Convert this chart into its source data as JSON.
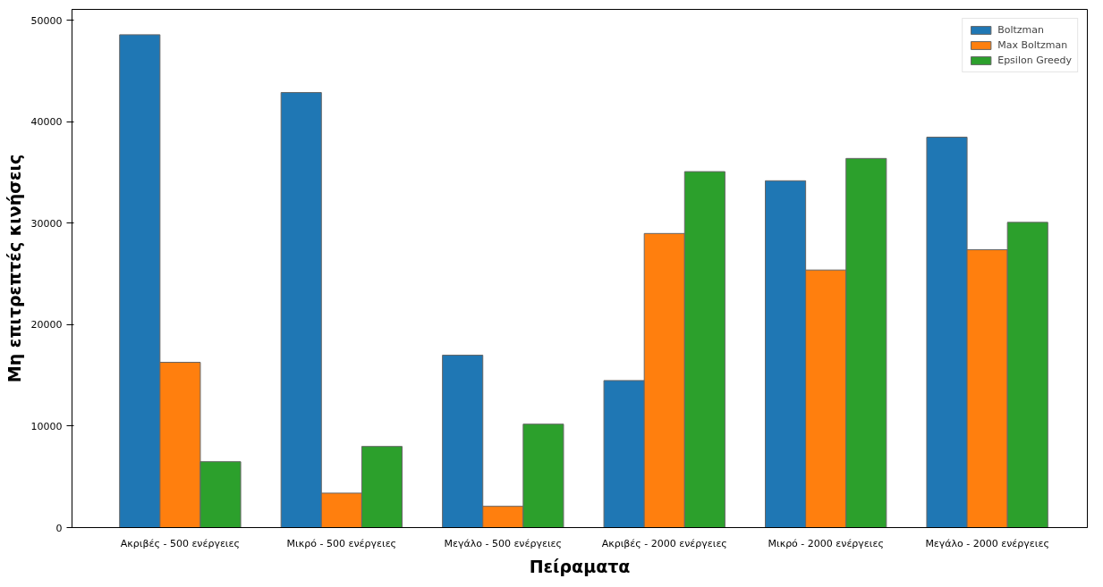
{
  "chart_data": {
    "type": "bar",
    "xlabel": "Πείραματα",
    "ylabel": "Μη επιτρεπτές κινήσεις",
    "categories": [
      "Ακριβές - 500 ενέργειες",
      "Μικρό - 500 ενέργειες",
      "Μεγάλο - 500 ενέργειες",
      "Ακριβές - 2000 ενέργειες",
      "Μικρό - 2000 ενέργειες",
      "Μεγάλο - 2000 ενέργειες"
    ],
    "series": [
      {
        "name": "Boltzman",
        "color": "#1f77b4",
        "values": [
          48600,
          42900,
          17000,
          14500,
          34200,
          38500
        ]
      },
      {
        "name": "Max Boltzman",
        "color": "#ff7f0e",
        "values": [
          16300,
          3400,
          2100,
          29000,
          25400,
          27400
        ]
      },
      {
        "name": "Epsilon Greedy",
        "color": "#2ca02c",
        "values": [
          6500,
          8000,
          10200,
          35100,
          36400,
          30100
        ]
      }
    ],
    "ylim": [
      0,
      51100
    ],
    "yticks": [
      0,
      10000,
      20000,
      30000,
      40000,
      50000
    ],
    "grid": false,
    "legend": "top right"
  }
}
